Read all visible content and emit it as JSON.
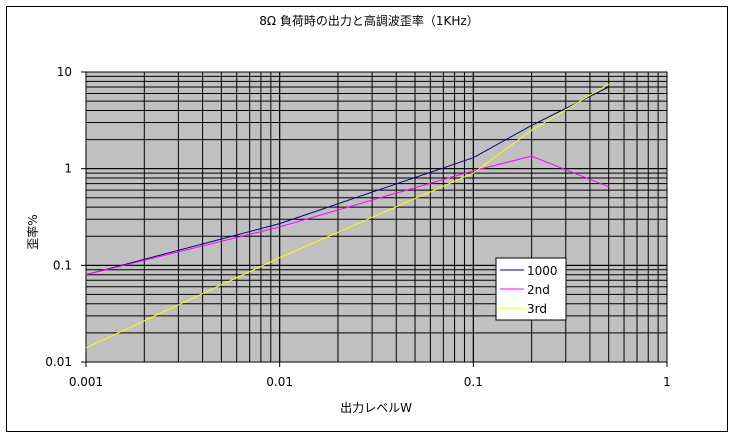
{
  "chart_data": {
    "type": "line",
    "title": "8Ω 負荷時の出力と高調波歪率（1KHz）",
    "xlabel": "出力レベルW",
    "ylabel": "歪率%",
    "x_scale": "log",
    "y_scale": "log",
    "xlim": [
      0.001,
      1
    ],
    "ylim": [
      0.01,
      10
    ],
    "x_ticks": [
      "0.001",
      "0.01",
      "0.1",
      "1"
    ],
    "y_ticks": [
      "0.01",
      "0.1",
      "1",
      "10"
    ],
    "grid": true,
    "plot_background": "#c0c0c0",
    "legend_position": "right-center",
    "series": [
      {
        "name": "1000",
        "color": "#000080",
        "x": [
          0.001,
          0.01,
          0.1,
          0.2,
          0.5
        ],
        "y": [
          0.08,
          0.27,
          1.3,
          2.8,
          7.0
        ]
      },
      {
        "name": "2nd",
        "color": "#ff00ff",
        "x": [
          0.001,
          0.01,
          0.1,
          0.2,
          0.5
        ],
        "y": [
          0.08,
          0.25,
          0.95,
          1.35,
          0.65
        ]
      },
      {
        "name": "3rd",
        "color": "#ffff00",
        "x": [
          0.001,
          0.01,
          0.1,
          0.2,
          0.5
        ],
        "y": [
          0.014,
          0.12,
          0.9,
          2.5,
          7.5
        ]
      }
    ]
  }
}
